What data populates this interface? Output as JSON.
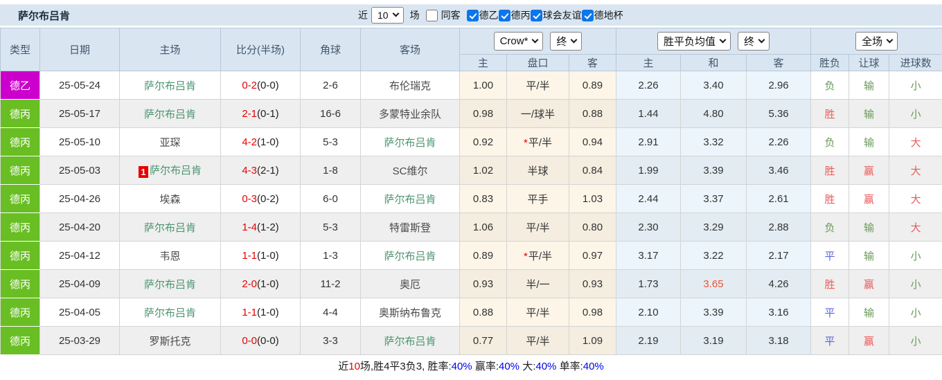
{
  "title": "萨尔布吕肯",
  "controls": {
    "recent_label": "近",
    "recent_value": "10",
    "games_label": "场",
    "same_opponent_label": "同客",
    "same_opponent_checked": false,
    "leagues": [
      {
        "label": "德乙",
        "checked": true
      },
      {
        "label": "德丙",
        "checked": true
      },
      {
        "label": "球会友谊",
        "checked": true
      },
      {
        "label": "德地杯",
        "checked": true
      }
    ]
  },
  "table": {
    "columns": {
      "type": "类型",
      "date": "日期",
      "home": "主场",
      "score": "比分(半场)",
      "corner": "角球",
      "away": "客场",
      "odds_sub": [
        "主",
        "盘口",
        "客"
      ],
      "avg_sub": [
        "主",
        "和",
        "客"
      ],
      "result_sub": [
        "胜负",
        "让球",
        "进球数"
      ]
    },
    "selects": {
      "bookmaker": "Crow*",
      "odds_stage": "终",
      "avg_label": "胜平负均值",
      "avg_stage": "终",
      "scope": "全场"
    },
    "rows": [
      {
        "league": "德乙",
        "date": "25-05-24",
        "home": "萨尔布吕肯",
        "homeHL": true,
        "score": "0-2",
        "half": "(0-0)",
        "corner": "2-6",
        "away": "布伦瑞克",
        "awayHL": false,
        "o1": "1.00",
        "pk": "平/半",
        "o2": "0.89",
        "a1": "2.26",
        "a2": "3.40",
        "a3": "2.96",
        "wdl": [
          "负",
          "g"
        ],
        "rq": [
          "输",
          "g"
        ],
        "jq": [
          "小",
          "g"
        ]
      },
      {
        "league": "德丙",
        "date": "25-05-17",
        "home": "萨尔布吕肯",
        "homeHL": true,
        "score": "2-1",
        "half": "(0-1)",
        "corner": "16-6",
        "away": "多蒙特业余队",
        "awayHL": false,
        "o1": "0.98",
        "pk": "一/球半",
        "o2": "0.88",
        "a1": "1.44",
        "a2": "4.80",
        "a3": "5.36",
        "wdl": [
          "胜",
          "r"
        ],
        "rq": [
          "输",
          "g"
        ],
        "jq": [
          "小",
          "g"
        ]
      },
      {
        "league": "德丙",
        "date": "25-05-10",
        "home": "亚琛",
        "homeHL": false,
        "score": "4-2",
        "half": "(1-0)",
        "corner": "5-3",
        "away": "萨尔布吕肯",
        "awayHL": true,
        "o1": "0.92",
        "pk": "平/半",
        "star": true,
        "o2": "0.94",
        "a1": "2.91",
        "a2": "3.32",
        "a3": "2.26",
        "wdl": [
          "负",
          "g"
        ],
        "rq": [
          "输",
          "g"
        ],
        "jq": [
          "大",
          "r"
        ]
      },
      {
        "league": "德丙",
        "date": "25-05-03",
        "home": "萨尔布吕肯",
        "homeHL": true,
        "badge": "1",
        "score": "4-3",
        "half": "(2-1)",
        "corner": "1-8",
        "away": "SC维尔",
        "awayHL": false,
        "o1": "1.02",
        "pk": "半球",
        "o2": "0.84",
        "a1": "1.99",
        "a2": "3.39",
        "a3": "3.46",
        "wdl": [
          "胜",
          "r"
        ],
        "rq": [
          "赢",
          "r"
        ],
        "jq": [
          "大",
          "r"
        ]
      },
      {
        "league": "德丙",
        "date": "25-04-26",
        "home": "埃森",
        "homeHL": false,
        "score": "0-3",
        "half": "(0-2)",
        "corner": "6-0",
        "away": "萨尔布吕肯",
        "awayHL": true,
        "o1": "0.83",
        "pk": "平手",
        "o2": "1.03",
        "a1": "2.44",
        "a2": "3.37",
        "a3": "2.61",
        "wdl": [
          "胜",
          "r"
        ],
        "rq": [
          "赢",
          "r"
        ],
        "jq": [
          "大",
          "r"
        ]
      },
      {
        "league": "德丙",
        "date": "25-04-20",
        "home": "萨尔布吕肯",
        "homeHL": true,
        "score": "1-4",
        "half": "(1-2)",
        "corner": "5-3",
        "away": "特雷斯登",
        "awayHL": false,
        "o1": "1.06",
        "pk": "平/半",
        "o2": "0.80",
        "a1": "2.30",
        "a2": "3.29",
        "a3": "2.88",
        "wdl": [
          "负",
          "g"
        ],
        "rq": [
          "输",
          "g"
        ],
        "jq": [
          "大",
          "r"
        ]
      },
      {
        "league": "德丙",
        "date": "25-04-12",
        "home": "韦恩",
        "homeHL": false,
        "score": "1-1",
        "half": "(1-0)",
        "corner": "1-3",
        "away": "萨尔布吕肯",
        "awayHL": true,
        "o1": "0.89",
        "pk": "平/半",
        "star": true,
        "o2": "0.97",
        "a1": "3.17",
        "a2": "3.22",
        "a3": "2.17",
        "wdl": [
          "平",
          "b"
        ],
        "rq": [
          "输",
          "g"
        ],
        "jq": [
          "小",
          "g"
        ]
      },
      {
        "league": "德丙",
        "date": "25-04-09",
        "home": "萨尔布吕肯",
        "homeHL": true,
        "score": "2-0",
        "half": "(1-0)",
        "corner": "11-2",
        "away": "奥厄",
        "awayHL": false,
        "o1": "0.93",
        "pk": "半/一",
        "o2": "0.93",
        "a1": "1.73",
        "a2": "3.65",
        "hot": true,
        "a3": "4.26",
        "wdl": [
          "胜",
          "r"
        ],
        "rq": [
          "赢",
          "r"
        ],
        "jq": [
          "小",
          "g"
        ]
      },
      {
        "league": "德丙",
        "date": "25-04-05",
        "home": "萨尔布吕肯",
        "homeHL": true,
        "score": "1-1",
        "half": "(1-0)",
        "corner": "4-4",
        "away": "奥斯纳布鲁克",
        "awayHL": false,
        "o1": "0.88",
        "pk": "平/半",
        "o2": "0.98",
        "a1": "2.10",
        "a2": "3.39",
        "a3": "3.16",
        "wdl": [
          "平",
          "b"
        ],
        "rq": [
          "输",
          "g"
        ],
        "jq": [
          "小",
          "g"
        ]
      },
      {
        "league": "德丙",
        "date": "25-03-29",
        "home": "罗斯托克",
        "homeHL": false,
        "score": "0-0",
        "half": "(0-0)",
        "corner": "3-3",
        "away": "萨尔布吕肯",
        "awayHL": true,
        "o1": "0.77",
        "pk": "平/半",
        "o2": "1.09",
        "a1": "2.19",
        "a2": "3.19",
        "a3": "3.18",
        "wdl": [
          "平",
          "b"
        ],
        "rq": [
          "赢",
          "r"
        ],
        "jq": [
          "小",
          "g"
        ]
      }
    ]
  },
  "footer": {
    "segments": [
      {
        "t": "近",
        "c": "k"
      },
      {
        "t": "10",
        "c": "r"
      },
      {
        "t": "场,胜4平3负3, ",
        "c": "k"
      },
      {
        "t": "胜率:",
        "c": "k"
      },
      {
        "t": "40%",
        "c": "b"
      },
      {
        "t": " 赢率:",
        "c": "k"
      },
      {
        "t": "40%",
        "c": "b"
      },
      {
        "t": " 大:",
        "c": "k"
      },
      {
        "t": "40%",
        "c": "b"
      },
      {
        "t": " 单率:",
        "c": "k"
      },
      {
        "t": "40%",
        "c": "b"
      }
    ]
  },
  "colors": {
    "header_bg": "#d9e6f2",
    "league_de2": "#cc00cc",
    "league_de3": "#69be23",
    "team_highlight_green": "#4a9470",
    "score_red": "#e60000",
    "result_green": "#6a9a5a",
    "result_red": "#ea5b5b",
    "result_blue": "#5a64dc",
    "hot_odds_red": "#f4502b",
    "percent_blue": "#0000ee",
    "checkbox_blue": "#0b76ec"
  }
}
